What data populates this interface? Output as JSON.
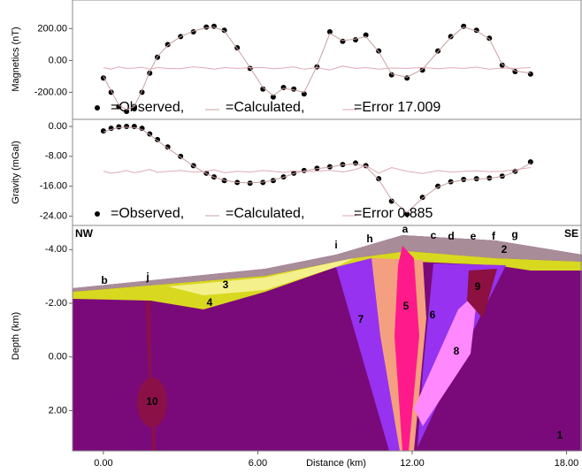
{
  "chart_data": [
    {
      "type": "scatter",
      "ylabel": "Magnetics (nT)",
      "xlim": [
        -1.2,
        18.6
      ],
      "ylim": [
        -370,
        380
      ],
      "yticks": [
        {
          "value": 200,
          "label": "200.00"
        },
        {
          "value": 0,
          "label": "0.00"
        },
        {
          "value": -200,
          "label": "-200.00"
        }
      ],
      "x": [
        0,
        0.3,
        0.6,
        0.9,
        1.2,
        1.5,
        1.8,
        2.1,
        2.5,
        3,
        3.5,
        4,
        4.3,
        4.7,
        5.2,
        5.7,
        6.2,
        6.6,
        7,
        7.4,
        7.8,
        8.3,
        8.8,
        9.3,
        9.8,
        10.2,
        10.7,
        11.2,
        11.8,
        12.4,
        13,
        13.5,
        14,
        14.5,
        15,
        15.5,
        16,
        16.6
      ],
      "series": [
        {
          "name": "=Observed,",
          "color": "#000000",
          "marker": "dot",
          "values": [
            -110,
            -200,
            -290,
            -320,
            -300,
            -200,
            -80,
            20,
            100,
            150,
            180,
            210,
            215,
            190,
            80,
            -50,
            -180,
            -230,
            -170,
            -180,
            -210,
            -40,
            180,
            120,
            130,
            160,
            60,
            -90,
            -110,
            -60,
            60,
            150,
            215,
            190,
            140,
            -30,
            -70,
            -85
          ]
        },
        {
          "name": "=Calculated,",
          "color": "#c8a0a0",
          "marker": "line",
          "values": [
            -100,
            -190,
            -280,
            -310,
            -290,
            -190,
            -70,
            25,
            95,
            150,
            185,
            205,
            210,
            185,
            75,
            -45,
            -170,
            -220,
            -175,
            -185,
            -200,
            -35,
            170,
            125,
            135,
            150,
            55,
            -85,
            -105,
            -55,
            55,
            145,
            210,
            185,
            135,
            -25,
            -65,
            -80
          ]
        },
        {
          "name": "=Error 17.009",
          "color": "#e0a8b8",
          "marker": "line",
          "values": [
            -45,
            -55,
            -40,
            -50,
            -48,
            -42,
            -55,
            -45,
            -50,
            -52,
            -40,
            -48,
            -55,
            -45,
            -50,
            -46,
            -44,
            -52,
            -48,
            -40,
            -55,
            -45,
            -60,
            -35,
            -50,
            -45,
            -55,
            -48,
            -50,
            -44,
            -52,
            -46,
            -50,
            -42,
            -55,
            -48,
            -50,
            -45
          ]
        }
      ]
    },
    {
      "type": "scatter",
      "ylabel": "Gravity (mGal)",
      "xlim": [
        -1.2,
        18.6
      ],
      "ylim": [
        -26.5,
        1.9
      ],
      "yticks": [
        {
          "value": 0,
          "label": "0.00"
        },
        {
          "value": -8,
          "label": "-8.00"
        },
        {
          "value": -16,
          "label": "-16.00"
        },
        {
          "value": -24,
          "label": "-24.00"
        }
      ],
      "x": [
        0,
        0.3,
        0.6,
        0.9,
        1.2,
        1.5,
        1.8,
        2.1,
        2.5,
        3,
        3.5,
        4,
        4.3,
        4.7,
        5.2,
        5.7,
        6.2,
        6.6,
        7,
        7.4,
        7.8,
        8.3,
        8.8,
        9.3,
        9.8,
        10.2,
        10.7,
        11.2,
        11.8,
        12.4,
        13,
        13.5,
        14,
        14.5,
        15,
        15.5,
        16,
        16.6
      ],
      "series": [
        {
          "name": "=Observed,",
          "color": "#000000",
          "marker": "dot",
          "values": [
            -1.2,
            -0.5,
            -0.1,
            0,
            0,
            -0.5,
            -2,
            -3.5,
            -5.5,
            -8,
            -10.5,
            -12.5,
            -13.5,
            -14.5,
            -15,
            -15.2,
            -15,
            -14.5,
            -13.5,
            -12.5,
            -11.8,
            -11.2,
            -10.8,
            -10.2,
            -9.8,
            -10.5,
            -14,
            -20,
            -23.5,
            -19,
            -16,
            -14.8,
            -14.2,
            -14,
            -13.8,
            -13.3,
            -12,
            -9.5
          ]
        },
        {
          "name": "=Calculated,",
          "color": "#c8a0a0",
          "marker": "line",
          "values": [
            -1.5,
            -0.8,
            -0.3,
            -0.2,
            -0.3,
            -0.8,
            -2.2,
            -3.8,
            -5.8,
            -8.2,
            -10.6,
            -12.6,
            -13.6,
            -14.4,
            -15,
            -15.1,
            -14.9,
            -14.4,
            -13.6,
            -12.6,
            -11.9,
            -11.3,
            -10.9,
            -10.3,
            -10,
            -10.8,
            -14.2,
            -19.6,
            -23,
            -19.2,
            -16.2,
            -14.9,
            -14.3,
            -14.1,
            -13.9,
            -13.4,
            -12.2,
            -9.8
          ]
        },
        {
          "name": "=Error 0.885",
          "color": "#e0a8b8",
          "marker": "line",
          "values": [
            -12,
            -12.5,
            -12.2,
            -11.8,
            -12.4,
            -12,
            -11.5,
            -12.3,
            -12,
            -11.8,
            -12.2,
            -12,
            -11.6,
            -12.4,
            -12,
            -12.2,
            -11.8,
            -12,
            -12.3,
            -11.9,
            -12.1,
            -12,
            -11.7,
            -12.2,
            -11.5,
            -10.5,
            -12.5,
            -11,
            -12,
            -12.6,
            -11.8,
            -12.2,
            -12,
            -11.9,
            -12.1,
            -12,
            -11.6,
            -11
          ]
        }
      ]
    },
    {
      "type": "section",
      "ylabel": "Depth (km)",
      "xlabel": "Distance (km)",
      "xlim": [
        -1.2,
        18.6
      ],
      "ylim": [
        3.5,
        -4.9
      ],
      "yticks": [
        {
          "value": -4,
          "label": "-4.00"
        },
        {
          "value": -2,
          "label": "-2.00"
        },
        {
          "value": 0,
          "label": "0.00"
        },
        {
          "value": 2,
          "label": "2.00"
        }
      ],
      "xticks": [
        {
          "value": 0,
          "label": "0.00"
        },
        {
          "value": 6,
          "label": "6.00"
        },
        {
          "value": 12,
          "label": "12.00"
        },
        {
          "value": 18,
          "label": "18.00"
        }
      ],
      "annotations": [
        "NW",
        "SE",
        "a",
        "b",
        "c",
        "d",
        "e",
        "f",
        "g",
        "h",
        "i",
        "j",
        "1",
        "2",
        "3",
        "4",
        "5",
        "6",
        "7",
        "8",
        "9",
        "10"
      ]
    }
  ]
}
